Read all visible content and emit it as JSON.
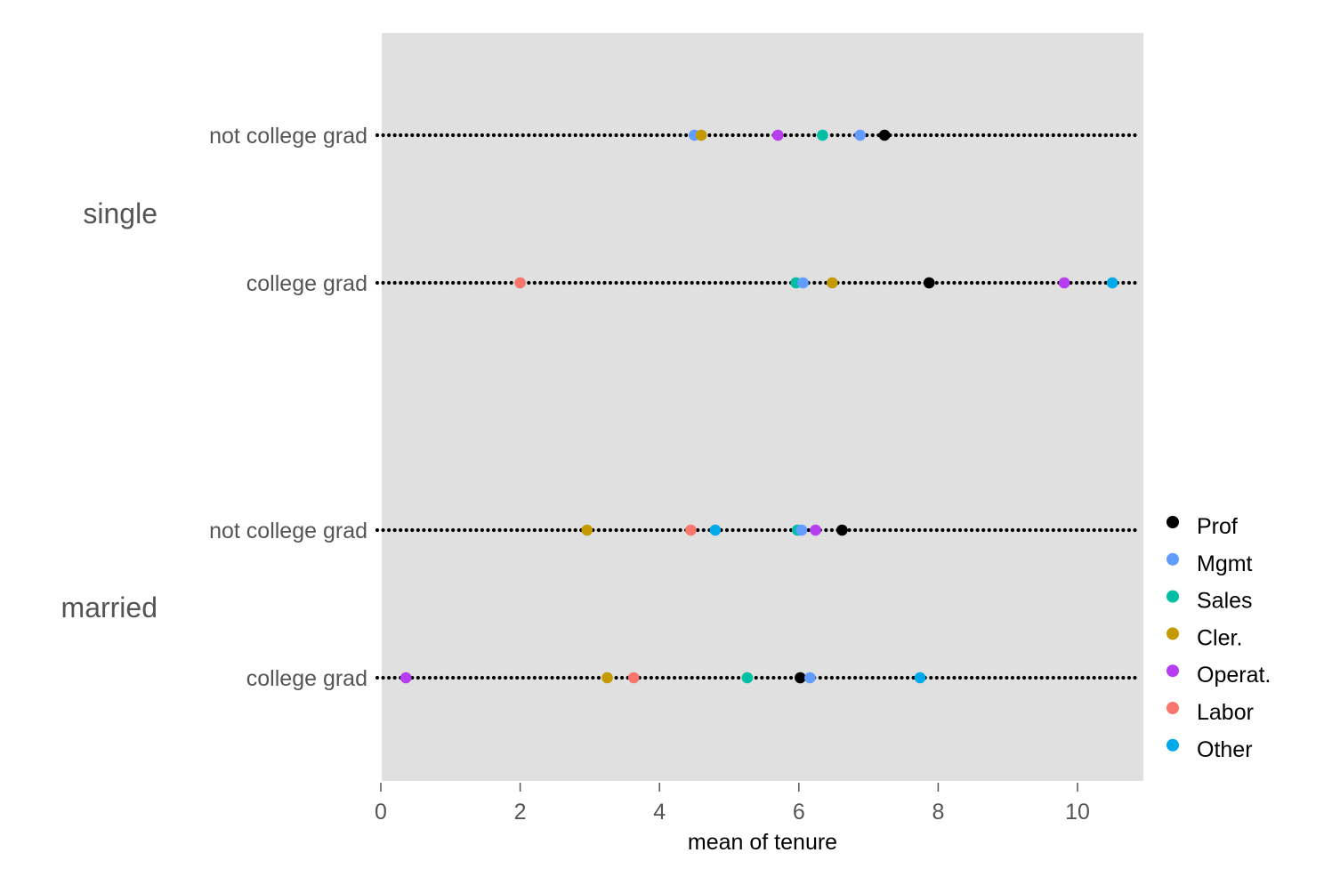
{
  "chart_data": {
    "type": "scatter",
    "xlabel": "mean of tenure",
    "xlim": [
      0,
      10.9
    ],
    "xticks": [
      0,
      2,
      4,
      6,
      8,
      10
    ],
    "grid": false,
    "legend_position": "right",
    "series": [
      {
        "name": "Prof",
        "color": "#000000"
      },
      {
        "name": "Mgmt",
        "color": "#619CFF"
      },
      {
        "name": "Sales",
        "color": "#00BFA5"
      },
      {
        "name": "Cler.",
        "color": "#C49A00"
      },
      {
        "name": "Operat.",
        "color": "#B73EF0"
      },
      {
        "name": "Labor",
        "color": "#F8766D"
      },
      {
        "name": "Other",
        "color": "#00A9E8"
      }
    ],
    "groups": [
      {
        "label": "single",
        "rows": [
          {
            "label": "not college grad",
            "points": [
              {
                "series": "Mgmt",
                "x": 4.5
              },
              {
                "series": "Cler.",
                "x": 4.6
              },
              {
                "series": "Operat.",
                "x": 5.7
              },
              {
                "series": "Sales",
                "x": 6.34
              },
              {
                "series": "Mgmt",
                "x": 6.88
              },
              {
                "series": "Prof",
                "x": 7.23
              }
            ]
          },
          {
            "label": "college grad",
            "points": [
              {
                "series": "Labor",
                "x": 2.0
              },
              {
                "series": "Sales",
                "x": 5.96
              },
              {
                "series": "Mgmt",
                "x": 6.06
              },
              {
                "series": "Cler.",
                "x": 6.48
              },
              {
                "series": "Prof",
                "x": 7.87
              },
              {
                "series": "Operat.",
                "x": 9.81
              },
              {
                "series": "Other",
                "x": 10.5
              }
            ]
          }
        ]
      },
      {
        "label": "married",
        "rows": [
          {
            "label": "not college grad",
            "points": [
              {
                "series": "Cler.",
                "x": 2.96
              },
              {
                "series": "Labor",
                "x": 4.45
              },
              {
                "series": "Other",
                "x": 4.8
              },
              {
                "series": "Sales",
                "x": 5.98
              },
              {
                "series": "Mgmt",
                "x": 6.04
              },
              {
                "series": "Operat.",
                "x": 6.24
              },
              {
                "series": "Prof",
                "x": 6.62
              }
            ]
          },
          {
            "label": "college grad",
            "points": [
              {
                "series": "Operat.",
                "x": 0.36
              },
              {
                "series": "Cler.",
                "x": 3.25
              },
              {
                "series": "Labor",
                "x": 3.63
              },
              {
                "series": "Sales",
                "x": 5.26
              },
              {
                "series": "Prof",
                "x": 6.02
              },
              {
                "series": "Mgmt",
                "x": 6.16
              },
              {
                "series": "Other",
                "x": 7.74
              }
            ]
          }
        ]
      }
    ]
  }
}
